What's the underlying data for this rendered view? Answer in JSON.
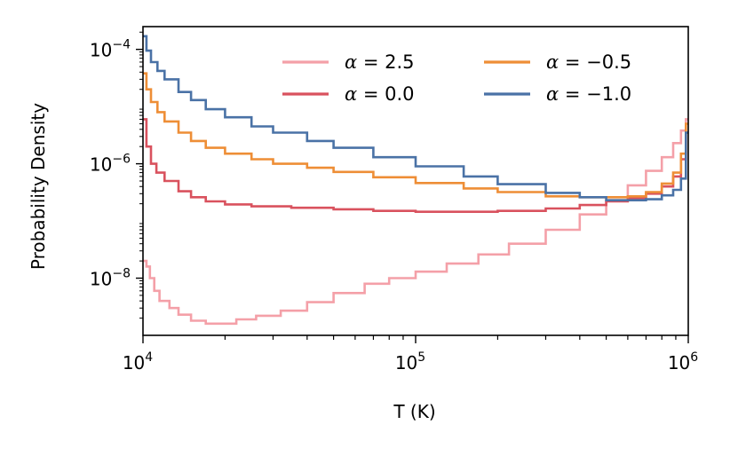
{
  "chart_data": {
    "type": "step",
    "xscale": "log",
    "yscale": "log",
    "xlabel": "T (K)",
    "ylabel": "Probability Density",
    "xlim": [
      10000,
      1000000
    ],
    "ylim": [
      1e-09,
      0.00025
    ],
    "x_ticks": [
      {
        "value": 10000,
        "base": "10",
        "exp": "4"
      },
      {
        "value": 100000,
        "base": "10",
        "exp": "5"
      },
      {
        "value": 1000000,
        "base": "10",
        "exp": "6"
      }
    ],
    "y_ticks": [
      {
        "value": 0.0001,
        "base": "10",
        "exp": "−4"
      },
      {
        "value": 1e-06,
        "base": "10",
        "exp": "−6"
      },
      {
        "value": 1e-08,
        "base": "10",
        "exp": "−8"
      }
    ],
    "legend_position": "top-right",
    "series": [
      {
        "name": "α = 2.5",
        "alpha": "2.5",
        "color": "#f4a0a8",
        "points": [
          [
            10000,
            2e-08
          ],
          [
            10300,
            1.6e-08
          ],
          [
            10600,
            1e-08
          ],
          [
            11000,
            6e-09
          ],
          [
            11500,
            4e-09
          ],
          [
            12500,
            3e-09
          ],
          [
            13500,
            2.3e-09
          ],
          [
            15000,
            1.8e-09
          ],
          [
            17000,
            1.6e-09
          ],
          [
            19000,
            1.6e-09
          ],
          [
            22000,
            1.9e-09
          ],
          [
            26000,
            2.2e-09
          ],
          [
            32000,
            2.7e-09
          ],
          [
            40000,
            3.8e-09
          ],
          [
            50000,
            5.5e-09
          ],
          [
            65000,
            8e-09
          ],
          [
            80000,
            1e-08
          ],
          [
            100000,
            1.3e-08
          ],
          [
            130000,
            1.8e-08
          ],
          [
            170000,
            2.6e-08
          ],
          [
            220000,
            4e-08
          ],
          [
            300000,
            7e-08
          ],
          [
            400000,
            1.3e-07
          ],
          [
            500000,
            2.3e-07
          ],
          [
            600000,
            4.2e-07
          ],
          [
            700000,
            7.5e-07
          ],
          [
            800000,
            1.3e-06
          ],
          [
            880000,
            2.3e-06
          ],
          [
            940000,
            3.8e-06
          ],
          [
            980000,
            6e-06
          ],
          [
            1000000,
            6e-06
          ]
        ]
      },
      {
        "name": "α = 0.0",
        "alpha": "0.0",
        "color": "#d9525e",
        "points": [
          [
            10000,
            6e-06
          ],
          [
            10300,
            2e-06
          ],
          [
            10700,
            1e-06
          ],
          [
            11200,
            7e-07
          ],
          [
            12000,
            5e-07
          ],
          [
            13500,
            3.3e-07
          ],
          [
            15000,
            2.6e-07
          ],
          [
            17000,
            2.2e-07
          ],
          [
            20000,
            1.95e-07
          ],
          [
            25000,
            1.8e-07
          ],
          [
            35000,
            1.7e-07
          ],
          [
            50000,
            1.6e-07
          ],
          [
            70000,
            1.5e-07
          ],
          [
            100000,
            1.45e-07
          ],
          [
            150000,
            1.45e-07
          ],
          [
            200000,
            1.5e-07
          ],
          [
            300000,
            1.65e-07
          ],
          [
            400000,
            1.9e-07
          ],
          [
            500000,
            2.2e-07
          ],
          [
            600000,
            2.5e-07
          ],
          [
            700000,
            3e-07
          ],
          [
            800000,
            4e-07
          ],
          [
            880000,
            6e-07
          ],
          [
            940000,
            1.2e-06
          ],
          [
            980000,
            3.5e-06
          ],
          [
            1000000,
            3.5e-06
          ]
        ]
      },
      {
        "name": "α = −0.5",
        "alpha": "−0.5",
        "color": "#ee8e36",
        "points": [
          [
            10000,
            3.8e-05
          ],
          [
            10300,
            2e-05
          ],
          [
            10700,
            1.2e-05
          ],
          [
            11300,
            8e-06
          ],
          [
            12000,
            5.5e-06
          ],
          [
            13500,
            3.5e-06
          ],
          [
            15000,
            2.5e-06
          ],
          [
            17000,
            1.9e-06
          ],
          [
            20000,
            1.5e-06
          ],
          [
            25000,
            1.2e-06
          ],
          [
            30000,
            1e-06
          ],
          [
            40000,
            8.5e-07
          ],
          [
            50000,
            7.2e-07
          ],
          [
            70000,
            5.8e-07
          ],
          [
            100000,
            4.6e-07
          ],
          [
            150000,
            3.7e-07
          ],
          [
            200000,
            3.2e-07
          ],
          [
            300000,
            2.7e-07
          ],
          [
            400000,
            2.6e-07
          ],
          [
            500000,
            2.6e-07
          ],
          [
            600000,
            2.7e-07
          ],
          [
            700000,
            3.2e-07
          ],
          [
            800000,
            4.5e-07
          ],
          [
            880000,
            7e-07
          ],
          [
            940000,
            1.5e-06
          ],
          [
            980000,
            5e-06
          ],
          [
            1000000,
            5e-06
          ]
        ]
      },
      {
        "name": "α = −1.0",
        "alpha": "−1.0",
        "color": "#4a72a6",
        "points": [
          [
            10000,
            0.00017
          ],
          [
            10300,
            9.5e-05
          ],
          [
            10700,
            6e-05
          ],
          [
            11300,
            4.2e-05
          ],
          [
            12000,
            3e-05
          ],
          [
            13500,
            1.8e-05
          ],
          [
            15000,
            1.3e-05
          ],
          [
            17000,
            9e-06
          ],
          [
            20000,
            6.5e-06
          ],
          [
            25000,
            4.5e-06
          ],
          [
            30000,
            3.5e-06
          ],
          [
            40000,
            2.5e-06
          ],
          [
            50000,
            1.9e-06
          ],
          [
            70000,
            1.3e-06
          ],
          [
            100000,
            9e-07
          ],
          [
            150000,
            6e-07
          ],
          [
            200000,
            4.4e-07
          ],
          [
            300000,
            3.1e-07
          ],
          [
            400000,
            2.6e-07
          ],
          [
            500000,
            2.3e-07
          ],
          [
            600000,
            2.3e-07
          ],
          [
            700000,
            2.4e-07
          ],
          [
            800000,
            2.8e-07
          ],
          [
            880000,
            3.5e-07
          ],
          [
            940000,
            5.5e-07
          ],
          [
            980000,
            3.5e-06
          ],
          [
            1000000,
            3.5e-06
          ]
        ]
      }
    ]
  }
}
